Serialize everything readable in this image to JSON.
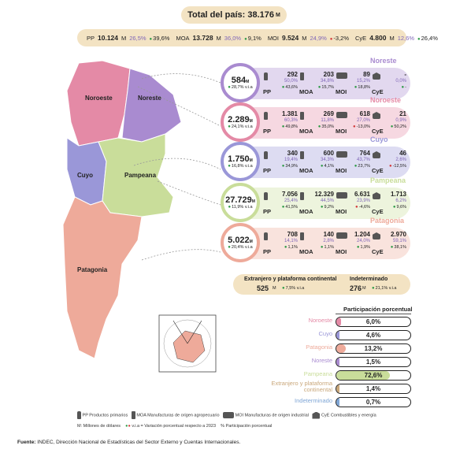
{
  "total": "Total del país: 38.176",
  "total_unit": "M",
  "summary": {
    "pp": {
      "code": "PP",
      "value": "10.124",
      "unit": "M",
      "pct": "26,5%",
      "var": "39,6%"
    },
    "moa": {
      "code": "MOA",
      "value": "13.728",
      "unit": "M",
      "pct": "36,0%",
      "var": "9,1%"
    },
    "moi": {
      "code": "MOI",
      "value": "9.524",
      "unit": "M",
      "pct": "24,9%",
      "var": "-3,2%"
    },
    "cye": {
      "code": "CyE",
      "value": "4.800",
      "unit": "M",
      "pct": "12,6%",
      "var": "26,4%"
    }
  },
  "map_labels": {
    "noroeste": "Noroeste",
    "noreste": "Noreste",
    "cuyo": "Cuyo",
    "pampeana": "Pampeana",
    "patagonia": "Patagonia"
  },
  "regions": [
    {
      "name": "Noreste",
      "total": "584",
      "unit": "M",
      "var": "28,7% v.i.a",
      "color": "#a98bd0",
      "pp": {
        "v": "292",
        "p": "50,0%",
        "c": "43,6%"
      },
      "moa": {
        "v": "203",
        "p": "34,8%",
        "c": "15,7%"
      },
      "moi": {
        "v": "89",
        "p": "15,2%",
        "c": "18,8%"
      },
      "cye": {
        "v": "-",
        "p": "0,0%",
        "c": "-"
      }
    },
    {
      "name": "Noroeste",
      "total": "2.289",
      "unit": "M",
      "var": "24,1% v.i.a",
      "color": "#e48aa6",
      "pp": {
        "v": "1.381",
        "p": "60,3%",
        "c": "49,8%"
      },
      "moa": {
        "v": "269",
        "p": "11,8%",
        "c": "35,0%"
      },
      "moi": {
        "v": "618",
        "p": "27,0%",
        "c": "-13,0%"
      },
      "cye": {
        "v": "21",
        "p": "0,9%",
        "c": "50,2%"
      }
    },
    {
      "name": "Cuyo",
      "total": "1.750",
      "unit": "M",
      "var": "16,8% v.i.a",
      "color": "#9a97d8",
      "pp": {
        "v": "340",
        "p": "19,4%",
        "c": "34,9%"
      },
      "moa": {
        "v": "600",
        "p": "34,3%",
        "c": "4,1%"
      },
      "moi": {
        "v": "764",
        "p": "43,7%",
        "c": "23,7%"
      },
      "cye": {
        "v": "46",
        "p": "2,6%",
        "c": "-12,5%"
      }
    },
    {
      "name": "Pampeana",
      "total": "27.729",
      "unit": "M",
      "var": "11,9% v.i.a",
      "color": "#c9dd9a",
      "pp": {
        "v": "7.056",
        "p": "25,4%",
        "c": "41,5%"
      },
      "moa": {
        "v": "12.329",
        "p": "44,5%",
        "c": "9,2%"
      },
      "moi": {
        "v": "6.631",
        "p": "23,9%",
        "c": "-4,6%"
      },
      "cye": {
        "v": "1.713",
        "p": "6,2%",
        "c": "9,6%"
      }
    },
    {
      "name": "Patagonia",
      "total": "5.022",
      "unit": "M",
      "var": "20,4% v.i.a",
      "color": "#eeaa9a",
      "pp": {
        "v": "708",
        "p": "14,1%",
        "c": "1,1%"
      },
      "moa": {
        "v": "140",
        "p": "2,8%",
        "c": "1,1%"
      },
      "moi": {
        "v": "1.204",
        "p": "24,0%",
        "c": "1,9%"
      },
      "cye": {
        "v": "2.970",
        "p": "59,1%",
        "c": "38,1%"
      }
    }
  ],
  "extranjero": {
    "label": "Extranjero y plataforma continental",
    "value": "525",
    "unit": "M",
    "var": "7,5% v.i.a"
  },
  "indeterminado": {
    "label": "Indeterminado",
    "value": "276",
    "unit": "M",
    "var": "21,1% v.i.a"
  },
  "chart_data": {
    "type": "bar",
    "title": "Participación porcentual",
    "categories": [
      "Noroeste",
      "Cuyo",
      "Patagonia",
      "Noreste",
      "Pampeana",
      "Extranjero y plataforma continental",
      "Indeterminado"
    ],
    "values": [
      6.0,
      4.6,
      13.2,
      1.5,
      72.6,
      1.4,
      0.7
    ],
    "labels": [
      "6,0%",
      "4,6%",
      "13,2%",
      "1,5%",
      "72,6%",
      "1,4%",
      "0,7%"
    ],
    "colors": [
      "#e48aa6",
      "#9a97d8",
      "#eeaa9a",
      "#a98bd0",
      "#c9dd9a",
      "#c9a77a",
      "#7fa6d6"
    ],
    "xlim": [
      0,
      100
    ]
  },
  "legend": {
    "pp": "PP Productos primarios",
    "moa": "MOA Manufacturas de origen agropecuario",
    "moi": "MOI Manufacturas de origen industrial",
    "cye": "CyE Combustibles y energía",
    "m": "M: Millones de dólares",
    "via": "v.i.a = Variación porcentual respecto a 2023",
    "pct": "% Participación porcentual"
  },
  "footer": {
    "label": "Fuente:",
    "text": "INDEC, Dirección Nacional de Estadísticas del Sector Externo y Cuentas Internacionales."
  }
}
